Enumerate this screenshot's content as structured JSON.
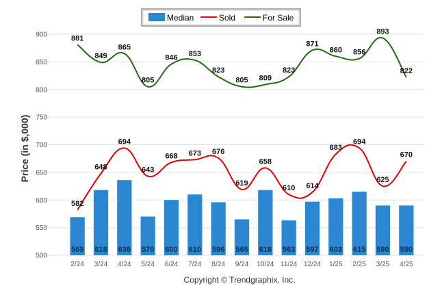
{
  "copyright": "Copyright © Trendgraphix, Inc.",
  "chart_data": {
    "type": "bar",
    "title": "",
    "xlabel": "",
    "ylabel": "Price (in $,000)",
    "ylim": [
      500,
      900
    ],
    "yticks": [
      500,
      550,
      600,
      650,
      700,
      750,
      800,
      850,
      900
    ],
    "grid": true,
    "legend_position": "top",
    "categories": [
      "2/24",
      "3/24",
      "4/24",
      "5/24",
      "6/24",
      "7/24",
      "8/24",
      "9/24",
      "10/24",
      "11/24",
      "12/24",
      "1/25",
      "2/25",
      "3/25",
      "4/25"
    ],
    "series": [
      {
        "name": "Median",
        "kind": "bar",
        "color": "#2b87d1",
        "values": [
          569,
          618,
          636,
          570,
          600,
          610,
          596,
          565,
          618,
          563,
          597,
          603,
          615,
          590,
          590
        ]
      },
      {
        "name": "Sold",
        "kind": "line",
        "color": "#e30000",
        "values": [
          582,
          648,
          694,
          643,
          668,
          673,
          676,
          619,
          658,
          610,
          614,
          683,
          694,
          625,
          670
        ]
      },
      {
        "name": "For Sale",
        "kind": "line",
        "color": "#1f6b0f",
        "values": [
          881,
          849,
          865,
          805,
          846,
          853,
          823,
          805,
          809,
          823,
          871,
          860,
          856,
          893,
          822
        ]
      }
    ]
  }
}
